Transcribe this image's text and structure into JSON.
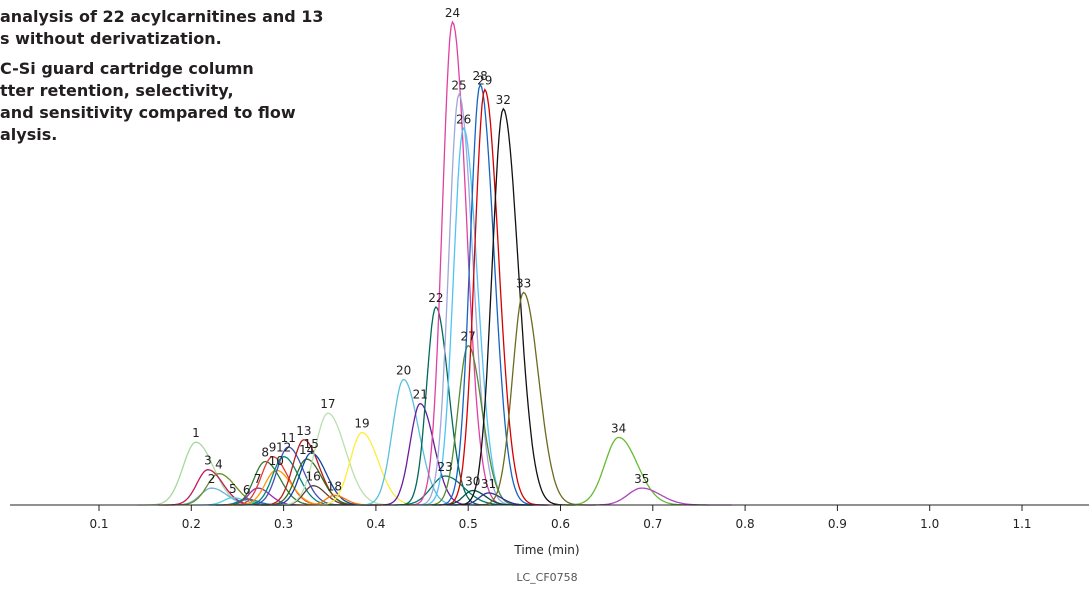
{
  "caption": {
    "lines": [
      "analysis of 22 acylcarnitines and 13",
      "s without derivatization.",
      "C-Si guard cartridge column",
      "tter retention, selectivity,",
      "and sensitivity compared to flow",
      "alysis."
    ]
  },
  "figure_code": "LC_CF0758",
  "chart_data": {
    "type": "line",
    "xlabel": "Time (min)",
    "ylabel": "",
    "xlim": [
      0.0,
      1.18
    ],
    "ylim": [
      0,
      100
    ],
    "xticks": [
      0.1,
      0.2,
      0.3,
      0.4,
      0.5,
      0.6,
      0.7,
      0.8,
      0.9,
      1.0,
      1.1
    ],
    "xtick_labels": [
      "0.1",
      "0.2",
      "0.3",
      "0.4",
      "0.5",
      "0.6",
      "0.7",
      "0.8",
      "0.9",
      "1.0",
      "1.1"
    ],
    "grid": false,
    "legend": "none",
    "peaks": [
      {
        "label": "1",
        "rt": 0.205,
        "height": 13.0,
        "width": 0.014,
        "color": "#a8d8a0"
      },
      {
        "label": "2",
        "rt": 0.222,
        "height": 3.5,
        "width": 0.012,
        "color": "#6cb4d8"
      },
      {
        "label": "3",
        "rt": 0.218,
        "height": 7.3,
        "width": 0.012,
        "color": "#c2185b"
      },
      {
        "label": "4",
        "rt": 0.23,
        "height": 6.5,
        "width": 0.013,
        "color": "#6b8e23"
      },
      {
        "label": "5",
        "rt": 0.245,
        "height": 1.5,
        "width": 0.01,
        "color": "#4dd0e1"
      },
      {
        "label": "6",
        "rt": 0.26,
        "height": 1.2,
        "width": 0.009,
        "color": "#1565c0"
      },
      {
        "label": "7",
        "rt": 0.272,
        "height": 3.5,
        "width": 0.01,
        "color": "#9c27b0"
      },
      {
        "label": "8",
        "rt": 0.28,
        "height": 9.0,
        "width": 0.012,
        "color": "#2e7d32"
      },
      {
        "label": "9",
        "rt": 0.288,
        "height": 10.0,
        "width": 0.012,
        "color": "#e53935"
      },
      {
        "label": "10",
        "rt": 0.292,
        "height": 7.2,
        "width": 0.012,
        "color": "#ff9800"
      },
      {
        "label": "11",
        "rt": 0.305,
        "height": 12.0,
        "width": 0.012,
        "color": "#3f51b5"
      },
      {
        "label": "12",
        "rt": 0.3,
        "height": 10.0,
        "width": 0.012,
        "color": "#00897b"
      },
      {
        "label": "13",
        "rt": 0.322,
        "height": 13.5,
        "width": 0.012,
        "color": "#b71c1c"
      },
      {
        "label": "14",
        "rt": 0.325,
        "height": 9.5,
        "width": 0.012,
        "color": "#33691e"
      },
      {
        "label": "15",
        "rt": 0.33,
        "height": 10.8,
        "width": 0.012,
        "color": "#0d47a1"
      },
      {
        "label": "16",
        "rt": 0.332,
        "height": 4.0,
        "width": 0.01,
        "color": "#5d4037"
      },
      {
        "label": "17",
        "rt": 0.348,
        "height": 19.0,
        "width": 0.014,
        "color": "#b9e0b0"
      },
      {
        "label": "18",
        "rt": 0.355,
        "height": 2.0,
        "width": 0.009,
        "color": "#ff6f00"
      },
      {
        "label": "19",
        "rt": 0.385,
        "height": 15.0,
        "width": 0.013,
        "color": "#ffeb3b"
      },
      {
        "label": "20",
        "rt": 0.43,
        "height": 26.0,
        "width": 0.012,
        "color": "#5bc0de"
      },
      {
        "label": "21",
        "rt": 0.448,
        "height": 21.0,
        "width": 0.011,
        "color": "#6a1b9a"
      },
      {
        "label": "22",
        "rt": 0.465,
        "height": 41.0,
        "width": 0.01,
        "color": "#00695c"
      },
      {
        "label": "23",
        "rt": 0.475,
        "height": 6.0,
        "width": 0.015,
        "color": "#00796b"
      },
      {
        "label": "24",
        "rt": 0.483,
        "height": 100.0,
        "width": 0.011,
        "color": "#e040a0"
      },
      {
        "label": "25",
        "rt": 0.49,
        "height": 85.0,
        "width": 0.011,
        "color": "#9fa8da"
      },
      {
        "label": "26",
        "rt": 0.495,
        "height": 78.0,
        "width": 0.011,
        "color": "#4fc3f7"
      },
      {
        "label": "27",
        "rt": 0.5,
        "height": 33.0,
        "width": 0.011,
        "color": "#558b2f"
      },
      {
        "label": "28",
        "rt": 0.513,
        "height": 87.0,
        "width": 0.011,
        "color": "#1565c0"
      },
      {
        "label": "29",
        "rt": 0.518,
        "height": 86.0,
        "width": 0.011,
        "color": "#d50000"
      },
      {
        "label": "30",
        "rt": 0.505,
        "height": 3.0,
        "width": 0.01,
        "color": "#004d40"
      },
      {
        "label": "31",
        "rt": 0.522,
        "height": 2.5,
        "width": 0.01,
        "color": "#283593"
      },
      {
        "label": "32",
        "rt": 0.538,
        "height": 82.0,
        "width": 0.012,
        "color": "#111111"
      },
      {
        "label": "33",
        "rt": 0.56,
        "height": 44.0,
        "width": 0.012,
        "color": "#6b6b1f"
      },
      {
        "label": "34",
        "rt": 0.663,
        "height": 14.0,
        "width": 0.015,
        "color": "#66bb33"
      },
      {
        "label": "35",
        "rt": 0.688,
        "height": 3.5,
        "width": 0.015,
        "color": "#ab47bc"
      }
    ]
  }
}
